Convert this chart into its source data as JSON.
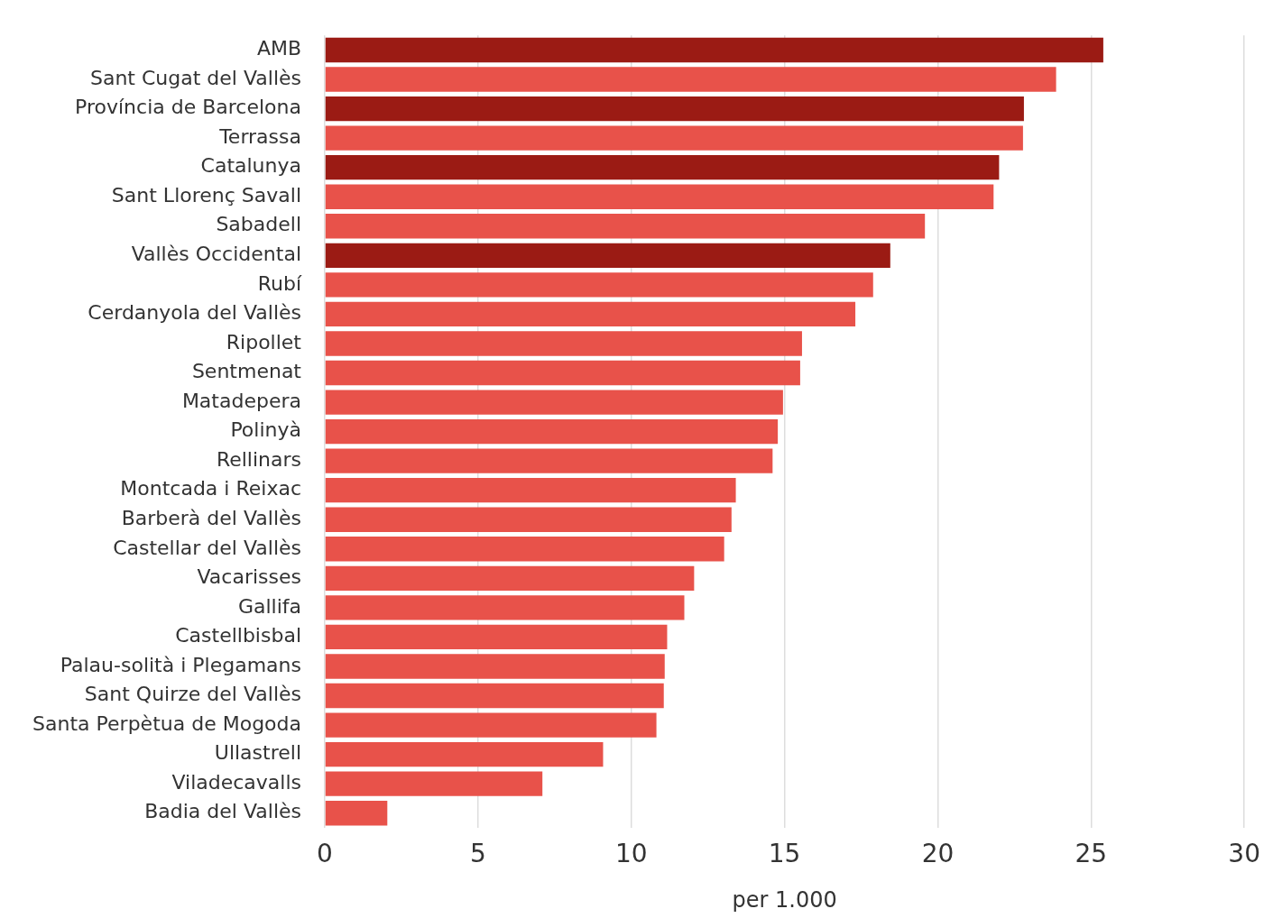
{
  "chart_data": {
    "type": "bar",
    "orientation": "horizontal",
    "xlabel": "per 1.000",
    "categories": [
      "AMB",
      "Sant Cugat del Vallès",
      "Província de Barcelona",
      "Terrassa",
      "Catalunya",
      "Sant Llorenç Savall",
      "Sabadell",
      "Vallès Occidental",
      "Rubí",
      "Cerdanyola del Vallès",
      "Ripollet",
      "Sentmenat",
      "Matadepera",
      "Polinyà",
      "Rellinars",
      "Montcada i Reixac",
      "Barberà del Vallès",
      "Castellar del Vallès",
      "Vacarisses",
      "Gallifa",
      "Castellbisbal",
      "Palau-solità i Plegamans",
      "Sant Quirze del Vallès",
      "Santa Perpètua de Mogoda",
      "Ullastrell",
      "Viladecavalls",
      "Badia del Vallès"
    ],
    "values": [
      25.4,
      23.86,
      22.81,
      22.78,
      22.0,
      21.82,
      19.58,
      18.45,
      17.89,
      17.31,
      15.57,
      15.51,
      14.95,
      14.78,
      14.61,
      13.41,
      13.27,
      13.03,
      12.05,
      11.73,
      11.17,
      11.09,
      11.06,
      10.82,
      9.08,
      7.1,
      2.04
    ],
    "colors": [
      "#9b1b14",
      "#e8524a",
      "#9b1b14",
      "#e8524a",
      "#9b1b14",
      "#e8524a",
      "#e8524a",
      "#9b1b14",
      "#e8524a",
      "#e8524a",
      "#e8524a",
      "#e8524a",
      "#e8524a",
      "#e8524a",
      "#e8524a",
      "#e8524a",
      "#e8524a",
      "#e8524a",
      "#e8524a",
      "#e8524a",
      "#e8524a",
      "#e8524a",
      "#e8524a",
      "#e8524a",
      "#e8524a",
      "#e8524a",
      "#e8524a"
    ],
    "xlim": [
      0,
      30
    ],
    "xticks": [
      0,
      5,
      10,
      15,
      20,
      25,
      30
    ],
    "grid": "x",
    "legend": false
  }
}
